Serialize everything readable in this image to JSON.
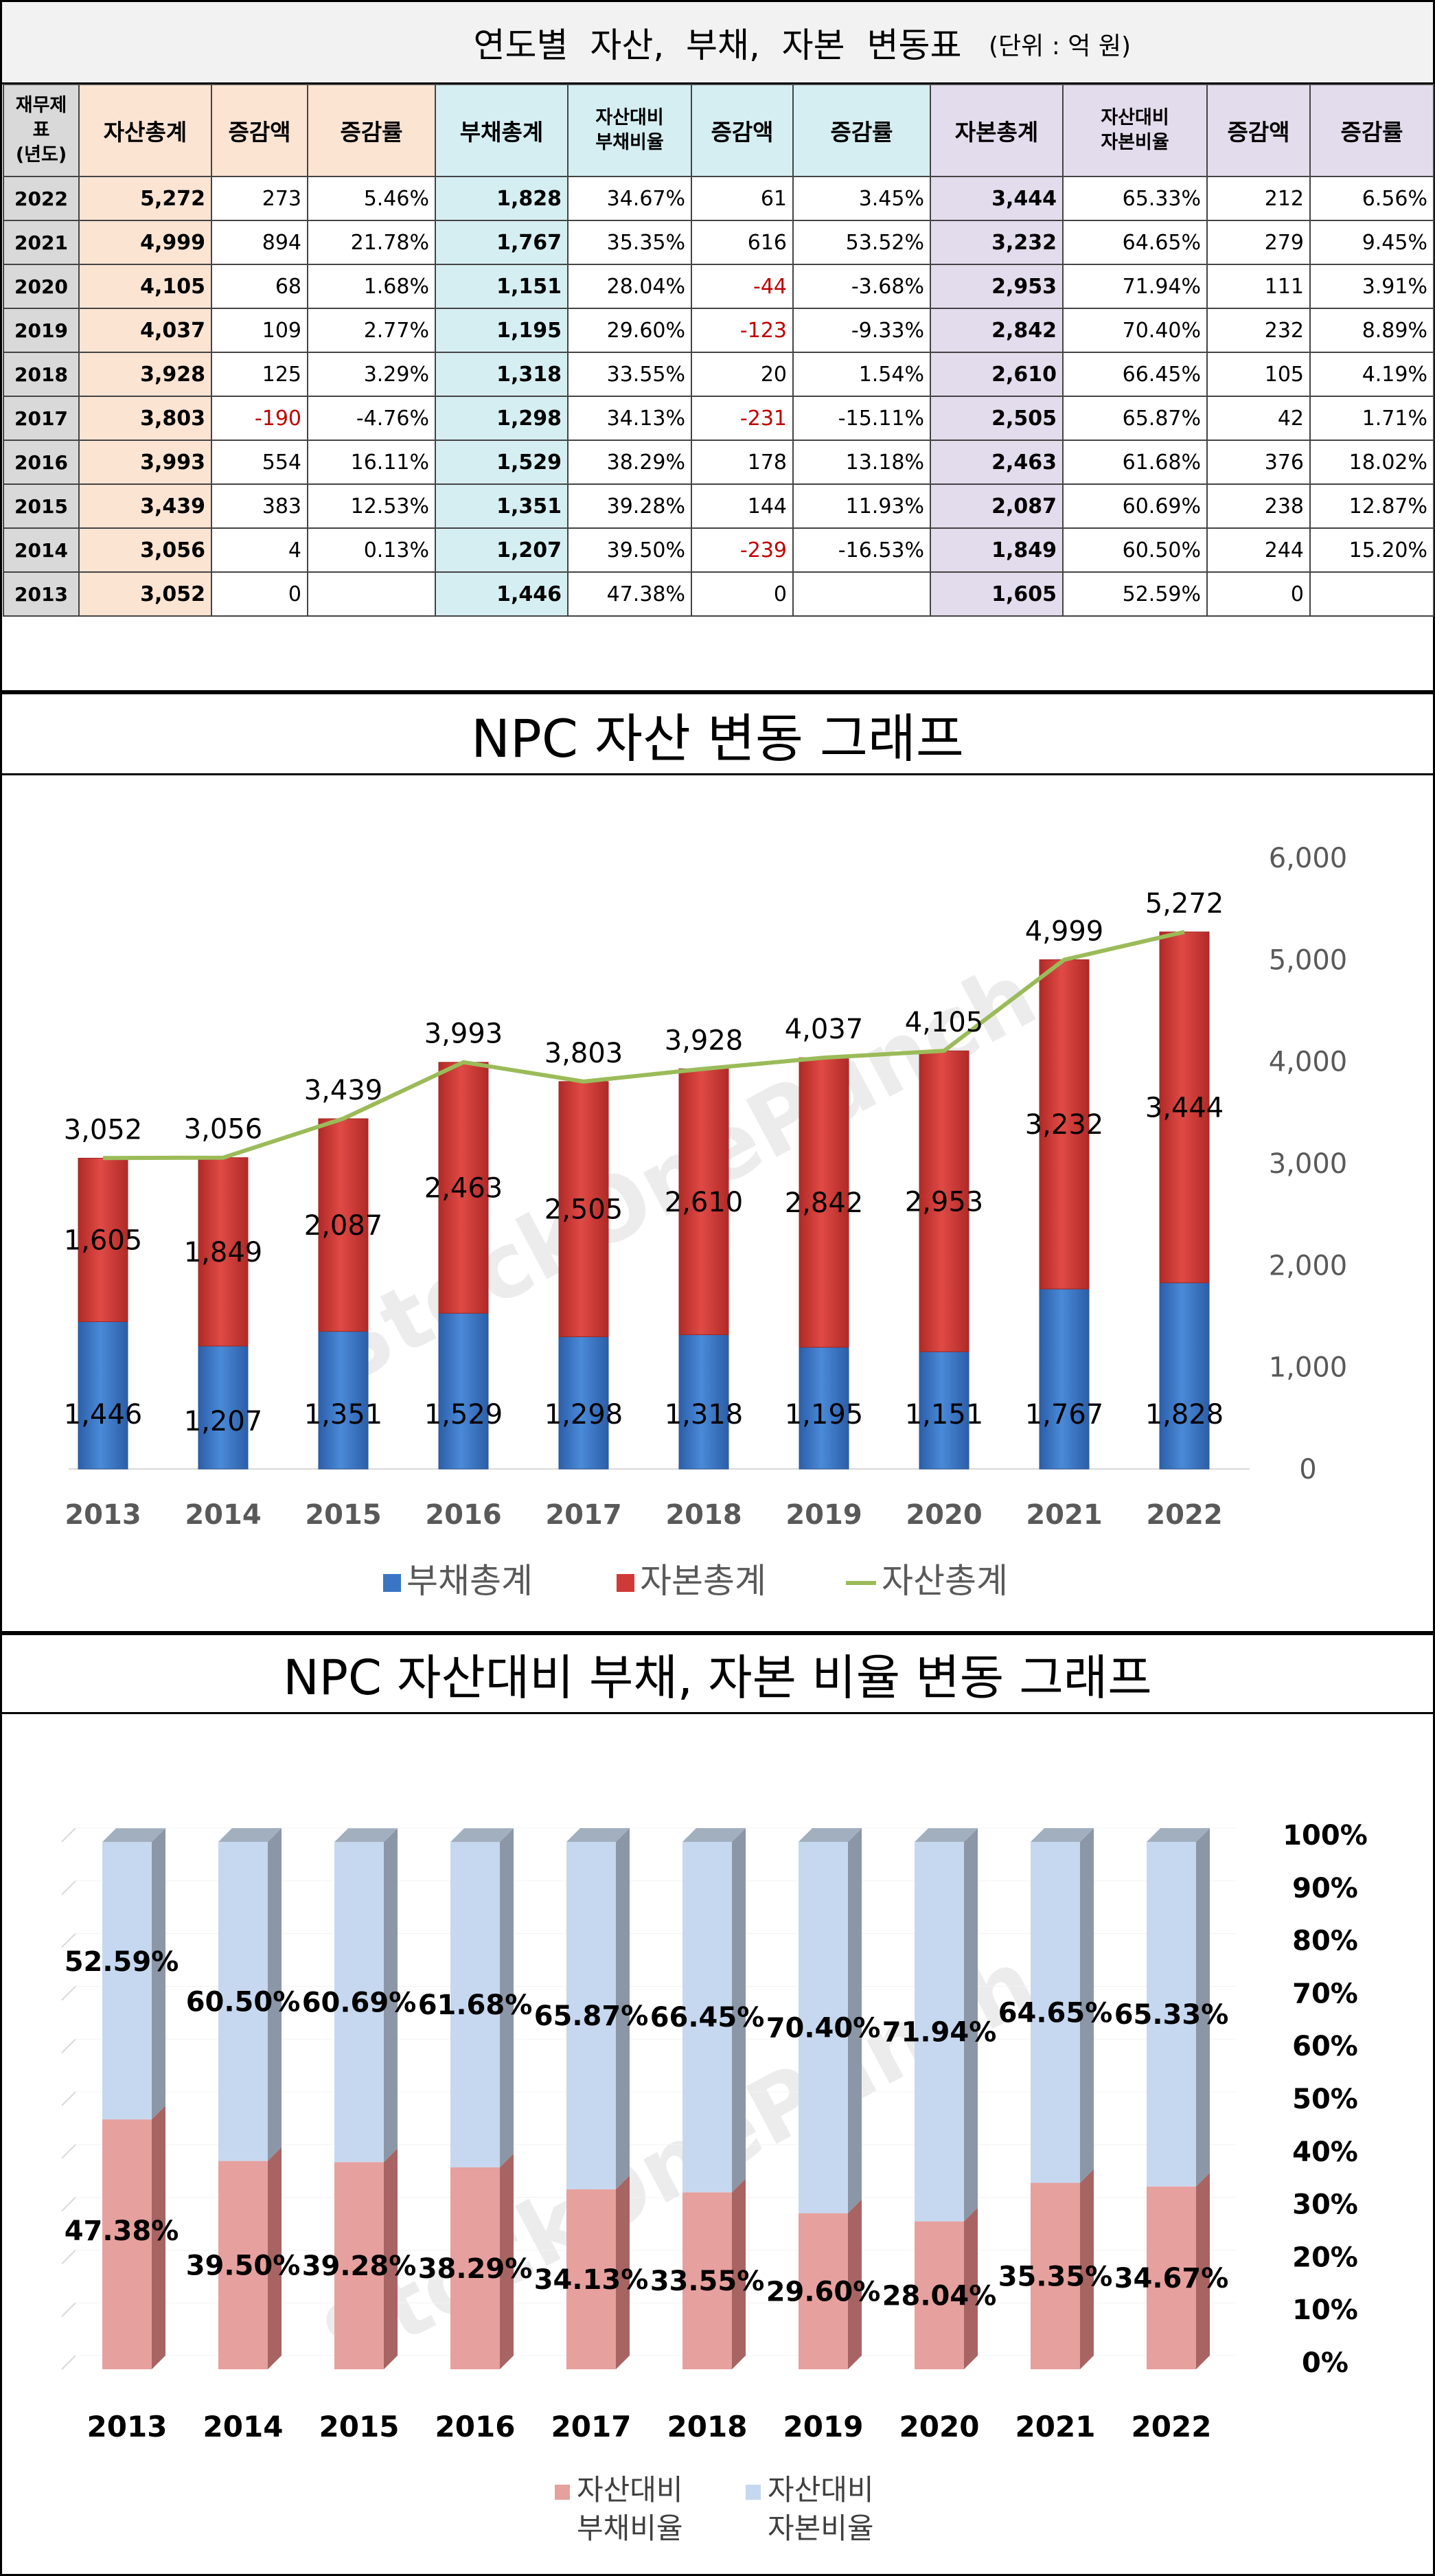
{
  "table": {
    "title": "연도별  자산,  부채,  자본  변동표",
    "unit": "(단위 : 억 원)",
    "headers": {
      "year": "재무제표 (년도)",
      "asset_total": "자산총계",
      "asset_change": "증감액",
      "asset_rate": "증감률",
      "debt_total": "부채총계",
      "debt_ratio": "자산대비 부채비율",
      "debt_change": "증감액",
      "debt_rate": "증감률",
      "capital_total": "자본총계",
      "capital_ratio": "자산대비 자본비율",
      "capital_change": "증감액",
      "capital_rate": "증감률"
    },
    "rows": [
      {
        "year": "2022",
        "asset_total": "5,272",
        "asset_change": "273",
        "asset_rate": "5.46%",
        "debt_total": "1,828",
        "debt_ratio": "34.67%",
        "debt_change": "61",
        "debt_rate": "3.45%",
        "capital_total": "3,444",
        "capital_ratio": "65.33%",
        "capital_change": "212",
        "capital_rate": "6.56%"
      },
      {
        "year": "2021",
        "asset_total": "4,999",
        "asset_change": "894",
        "asset_rate": "21.78%",
        "debt_total": "1,767",
        "debt_ratio": "35.35%",
        "debt_change": "616",
        "debt_rate": "53.52%",
        "capital_total": "3,232",
        "capital_ratio": "64.65%",
        "capital_change": "279",
        "capital_rate": "9.45%"
      },
      {
        "year": "2020",
        "asset_total": "4,105",
        "asset_change": "68",
        "asset_rate": "1.68%",
        "debt_total": "1,151",
        "debt_ratio": "28.04%",
        "debt_change": "-44",
        "debt_rate": "-3.68%",
        "capital_total": "2,953",
        "capital_ratio": "71.94%",
        "capital_change": "111",
        "capital_rate": "3.91%"
      },
      {
        "year": "2019",
        "asset_total": "4,037",
        "asset_change": "109",
        "asset_rate": "2.77%",
        "debt_total": "1,195",
        "debt_ratio": "29.60%",
        "debt_change": "-123",
        "debt_rate": "-9.33%",
        "capital_total": "2,842",
        "capital_ratio": "70.40%",
        "capital_change": "232",
        "capital_rate": "8.89%"
      },
      {
        "year": "2018",
        "asset_total": "3,928",
        "asset_change": "125",
        "asset_rate": "3.29%",
        "debt_total": "1,318",
        "debt_ratio": "33.55%",
        "debt_change": "20",
        "debt_rate": "1.54%",
        "capital_total": "2,610",
        "capital_ratio": "66.45%",
        "capital_change": "105",
        "capital_rate": "4.19%"
      },
      {
        "year": "2017",
        "asset_total": "3,803",
        "asset_change": "-190",
        "asset_rate": "-4.76%",
        "debt_total": "1,298",
        "debt_ratio": "34.13%",
        "debt_change": "-231",
        "debt_rate": "-15.11%",
        "capital_total": "2,505",
        "capital_ratio": "65.87%",
        "capital_change": "42",
        "capital_rate": "1.71%"
      },
      {
        "year": "2016",
        "asset_total": "3,993",
        "asset_change": "554",
        "asset_rate": "16.11%",
        "debt_total": "1,529",
        "debt_ratio": "38.29%",
        "debt_change": "178",
        "debt_rate": "13.18%",
        "capital_total": "2,463",
        "capital_ratio": "61.68%",
        "capital_change": "376",
        "capital_rate": "18.02%"
      },
      {
        "year": "2015",
        "asset_total": "3,439",
        "asset_change": "383",
        "asset_rate": "12.53%",
        "debt_total": "1,351",
        "debt_ratio": "39.28%",
        "debt_change": "144",
        "debt_rate": "11.93%",
        "capital_total": "2,087",
        "capital_ratio": "60.69%",
        "capital_change": "238",
        "capital_rate": "12.87%"
      },
      {
        "year": "2014",
        "asset_total": "3,056",
        "asset_change": "4",
        "asset_rate": "0.13%",
        "debt_total": "1,207",
        "debt_ratio": "39.50%",
        "debt_change": "-239",
        "debt_rate": "-16.53%",
        "capital_total": "1,849",
        "capital_ratio": "60.50%",
        "capital_change": "244",
        "capital_rate": "15.20%"
      },
      {
        "year": "2013",
        "asset_total": "3,052",
        "asset_change": "0",
        "asset_rate": "",
        "debt_total": "1,446",
        "debt_ratio": "47.38%",
        "debt_change": "0",
        "debt_rate": "",
        "capital_total": "1,605",
        "capital_ratio": "52.59%",
        "capital_change": "0",
        "capital_rate": ""
      }
    ]
  },
  "watermark": "StockOnePunch",
  "colors": {
    "debt_bar": "#3a75c4",
    "capital_bar": "#d03a36",
    "asset_line": "#9bbb59",
    "debt_ratio_bar": "#e6a09e",
    "capital_ratio_bar": "#c6d8ef"
  },
  "chart_data": [
    {
      "type": "bar",
      "stacked": true,
      "title": "NPC 자산 변동 그래프",
      "categories": [
        "2013",
        "2014",
        "2015",
        "2016",
        "2017",
        "2018",
        "2019",
        "2020",
        "2021",
        "2022"
      ],
      "series": [
        {
          "name": "부채총계",
          "kind": "bar",
          "values": [
            1446,
            1207,
            1351,
            1529,
            1298,
            1318,
            1195,
            1151,
            1767,
            1828
          ],
          "labels": [
            "1,446",
            "1,207",
            "1,351",
            "1,529",
            "1,298",
            "1,318",
            "1,195",
            "1,151",
            "1,767",
            "1,828"
          ]
        },
        {
          "name": "자본총계",
          "kind": "bar",
          "values": [
            1605,
            1849,
            2087,
            2463,
            2505,
            2610,
            2842,
            2953,
            3232,
            3444
          ],
          "labels": [
            "1,605",
            "1,849",
            "2,087",
            "2,463",
            "2,505",
            "2,610",
            "2,842",
            "2,953",
            "3,232",
            "3,444"
          ]
        },
        {
          "name": "자산총계",
          "kind": "line",
          "values": [
            3052,
            3056,
            3439,
            3993,
            3803,
            3928,
            4037,
            4105,
            4999,
            5272
          ],
          "labels": [
            "3,052",
            "3,056",
            "3,439",
            "3,993",
            "3,803",
            "3,928",
            "4,037",
            "4,105",
            "4,999",
            "5,272"
          ]
        }
      ],
      "ylim": [
        0,
        6000
      ],
      "yticks": [
        "0",
        "1,000",
        "2,000",
        "3,000",
        "4,000",
        "5,000",
        "6,000"
      ],
      "y_axis_side": "right",
      "legend": "bottom"
    },
    {
      "type": "bar",
      "stacked": true,
      "style": "3d",
      "title": "NPC 자산대비 부채, 자본 비율 변동 그래프",
      "categories": [
        "2013",
        "2014",
        "2015",
        "2016",
        "2017",
        "2018",
        "2019",
        "2020",
        "2021",
        "2022"
      ],
      "series": [
        {
          "name": "자산대비 부채비율",
          "values": [
            47.38,
            39.5,
            39.28,
            38.29,
            34.13,
            33.55,
            29.6,
            28.04,
            35.35,
            34.67
          ],
          "labels": [
            "47.38%",
            "39.50%",
            "39.28%",
            "38.29%",
            "34.13%",
            "33.55%",
            "29.60%",
            "28.04%",
            "35.35%",
            "34.67%"
          ]
        },
        {
          "name": "자산대비 자본비율",
          "values": [
            52.59,
            60.5,
            60.69,
            61.68,
            65.87,
            66.45,
            70.4,
            71.94,
            64.65,
            65.33
          ],
          "labels": [
            "52.59%",
            "60.50%",
            "60.69%",
            "61.68%",
            "65.87%",
            "66.45%",
            "70.40%",
            "71.94%",
            "64.65%",
            "65.33%"
          ]
        }
      ],
      "ylim": [
        0,
        100
      ],
      "yticks": [
        "0%",
        "10%",
        "20%",
        "30%",
        "40%",
        "50%",
        "60%",
        "70%",
        "80%",
        "90%",
        "100%"
      ],
      "y_axis_side": "right",
      "legend": "bottom"
    }
  ]
}
